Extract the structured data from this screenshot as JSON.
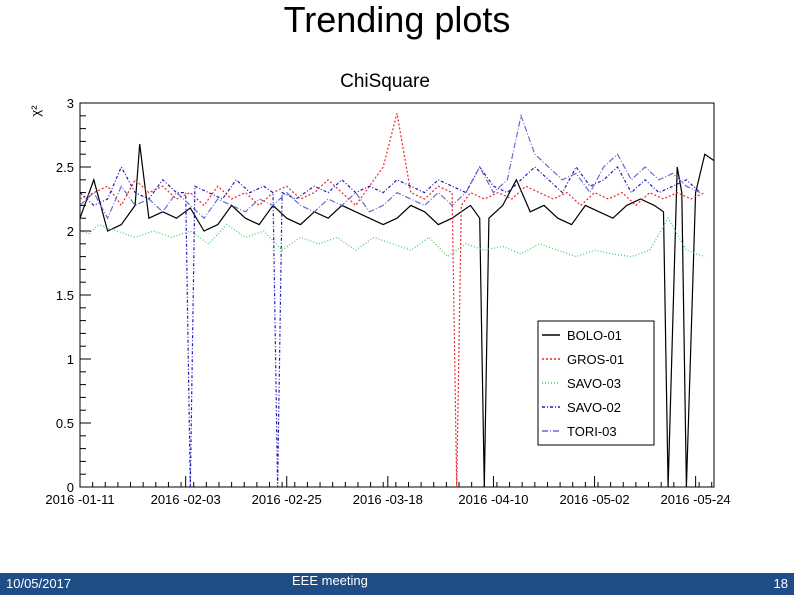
{
  "slide": {
    "title": "Trending plots"
  },
  "footer": {
    "date": "10/05/2017",
    "center": "EEE meeting",
    "page": "18"
  },
  "colors": {
    "footer_bg": "#1f4d86",
    "BOLO-01": "#000000",
    "GROS-01": "#e8272b",
    "SAVO-03": "#3ccc57",
    "SAVO-02": "#1a1ab8",
    "TORI-03": "#6a6acd"
  },
  "chart_data": {
    "type": "line",
    "title": "ChiSquare",
    "ylabel": "χ²",
    "xlabel": "",
    "ylim": [
      0,
      3
    ],
    "xlim": [
      "2016-01-11",
      "2016-05-28"
    ],
    "yticks": [
      "0",
      "0.5",
      "1",
      "1.5",
      "2",
      "2.5",
      "3"
    ],
    "xticks": [
      {
        "date": "2016-01-11",
        "label": "2016 -01-11"
      },
      {
        "date": "2016-02-03",
        "label": "2016 -02-03"
      },
      {
        "date": "2016-02-25",
        "label": "2016 -02-25"
      },
      {
        "date": "2016-03-18",
        "label": "2016 -03-18"
      },
      {
        "date": "2016-04-10",
        "label": "2016 -04-10"
      },
      {
        "date": "2016-05-02",
        "label": "2016 -05-02"
      },
      {
        "date": "2016-05-24",
        "label": "2016 -05-24"
      }
    ],
    "grid": false,
    "legend_position": "bottom-right",
    "series": [
      {
        "name": "BOLO-01",
        "color": "#000000",
        "dash": "none",
        "x": [
          "2016-01-11",
          "2016-01-14",
          "2016-01-17",
          "2016-01-20",
          "2016-01-23",
          "2016-01-24",
          "2016-01-26",
          "2016-01-29",
          "2016-02-01",
          "2016-02-04",
          "2016-02-07",
          "2016-02-10",
          "2016-02-13",
          "2016-02-16",
          "2016-02-19",
          "2016-02-22",
          "2016-02-25",
          "2016-02-28",
          "2016-03-02",
          "2016-03-05",
          "2016-03-08",
          "2016-03-11",
          "2016-03-14",
          "2016-03-17",
          "2016-03-20",
          "2016-03-23",
          "2016-03-26",
          "2016-03-29",
          "2016-04-01",
          "2016-04-03",
          "2016-04-05",
          "2016-04-07",
          "2016-04-08",
          "2016-04-09",
          "2016-04-12",
          "2016-04-15",
          "2016-04-18",
          "2016-04-21",
          "2016-04-24",
          "2016-04-27",
          "2016-04-30",
          "2016-05-03",
          "2016-05-06",
          "2016-05-09",
          "2016-05-12",
          "2016-05-15",
          "2016-05-17",
          "2016-05-18",
          "2016-05-20",
          "2016-05-21",
          "2016-05-22",
          "2016-05-24",
          "2016-05-26",
          "2016-05-28"
        ],
        "y": [
          2.1,
          2.4,
          2.0,
          2.05,
          2.2,
          2.68,
          2.1,
          2.15,
          2.1,
          2.18,
          2.0,
          2.05,
          2.2,
          2.1,
          2.05,
          2.2,
          2.1,
          2.05,
          2.15,
          2.1,
          2.2,
          2.15,
          2.1,
          2.05,
          2.1,
          2.2,
          2.15,
          2.05,
          2.1,
          2.15,
          2.2,
          2.1,
          0.0,
          2.1,
          2.2,
          2.4,
          2.15,
          2.2,
          2.1,
          2.05,
          2.2,
          2.15,
          2.1,
          2.2,
          2.25,
          2.2,
          2.15,
          0.0,
          2.5,
          2.3,
          0.0,
          2.3,
          2.6,
          2.55
        ]
      },
      {
        "name": "GROS-01",
        "color": "#e8272b",
        "dash": "2,2",
        "x": [
          "2016-01-11",
          "2016-01-14",
          "2016-01-17",
          "2016-01-20",
          "2016-01-23",
          "2016-01-26",
          "2016-01-29",
          "2016-02-01",
          "2016-02-04",
          "2016-02-07",
          "2016-02-10",
          "2016-02-13",
          "2016-02-16",
          "2016-02-19",
          "2016-02-22",
          "2016-02-25",
          "2016-02-28",
          "2016-03-02",
          "2016-03-05",
          "2016-03-08",
          "2016-03-11",
          "2016-03-14",
          "2016-03-17",
          "2016-03-20",
          "2016-03-23",
          "2016-03-26",
          "2016-03-29",
          "2016-04-01",
          "2016-04-02",
          "2016-04-03",
          "2016-04-05",
          "2016-04-08",
          "2016-04-11",
          "2016-04-14",
          "2016-04-17",
          "2016-04-20",
          "2016-04-23",
          "2016-04-26",
          "2016-04-29",
          "2016-05-02",
          "2016-05-05",
          "2016-05-08",
          "2016-05-11",
          "2016-05-14",
          "2016-05-17",
          "2016-05-20",
          "2016-05-23",
          "2016-05-26"
        ],
        "y": [
          2.25,
          2.3,
          2.35,
          2.2,
          2.4,
          2.3,
          2.35,
          2.25,
          2.3,
          2.2,
          2.35,
          2.25,
          2.3,
          2.2,
          2.3,
          2.35,
          2.25,
          2.3,
          2.4,
          2.3,
          2.2,
          2.35,
          2.5,
          2.92,
          2.3,
          2.25,
          2.35,
          2.3,
          0.0,
          2.2,
          2.3,
          2.25,
          2.3,
          2.25,
          2.35,
          2.3,
          2.25,
          2.3,
          2.2,
          2.3,
          2.25,
          2.3,
          2.2,
          2.3,
          2.25,
          2.3,
          2.25,
          2.3
        ]
      },
      {
        "name": "SAVO-03",
        "color": "#3ccc57",
        "dash": "1,2",
        "x": [
          "2016-01-11",
          "2016-01-13",
          "2016-01-15",
          "2016-01-19",
          "2016-01-23",
          "2016-01-27",
          "2016-01-31",
          "2016-02-04",
          "2016-02-08",
          "2016-02-12",
          "2016-02-16",
          "2016-02-20",
          "2016-02-24",
          "2016-02-28",
          "2016-03-03",
          "2016-03-07",
          "2016-03-11",
          "2016-03-15",
          "2016-03-19",
          "2016-03-23",
          "2016-03-27",
          "2016-03-31",
          "2016-04-04",
          "2016-04-08",
          "2016-04-12",
          "2016-04-16",
          "2016-04-20",
          "2016-04-24",
          "2016-04-28",
          "2016-05-02",
          "2016-05-06",
          "2016-05-10",
          "2016-05-14",
          "2016-05-18",
          "2016-05-22",
          "2016-05-26"
        ],
        "y": [
          2.0,
          1.98,
          2.05,
          2.0,
          1.95,
          2.0,
          1.95,
          2.0,
          1.9,
          2.05,
          1.95,
          2.0,
          1.85,
          1.95,
          1.9,
          1.95,
          1.85,
          1.95,
          1.9,
          1.85,
          1.95,
          1.8,
          1.9,
          1.85,
          1.88,
          1.82,
          1.9,
          1.85,
          1.8,
          1.85,
          1.82,
          1.8,
          1.85,
          2.1,
          1.85,
          1.8
        ]
      },
      {
        "name": "SAVO-02",
        "color": "#1a1ab8",
        "dash": "3,2,1,2",
        "x": [
          "2016-01-11",
          "2016-01-14",
          "2016-01-17",
          "2016-01-20",
          "2016-01-23",
          "2016-01-26",
          "2016-01-29",
          "2016-02-01",
          "2016-02-03",
          "2016-02-04",
          "2016-02-05",
          "2016-02-08",
          "2016-02-11",
          "2016-02-14",
          "2016-02-17",
          "2016-02-20",
          "2016-02-22",
          "2016-02-23",
          "2016-02-24",
          "2016-02-27",
          "2016-03-02",
          "2016-03-05",
          "2016-03-08",
          "2016-03-11",
          "2016-03-14",
          "2016-03-17",
          "2016-03-20",
          "2016-03-23",
          "2016-03-26",
          "2016-03-29",
          "2016-04-01",
          "2016-04-04",
          "2016-04-07",
          "2016-04-10",
          "2016-04-13",
          "2016-04-16",
          "2016-04-19",
          "2016-04-22",
          "2016-04-25",
          "2016-04-28",
          "2016-05-01",
          "2016-05-04",
          "2016-05-07",
          "2016-05-10",
          "2016-05-13",
          "2016-05-16",
          "2016-05-19",
          "2016-05-22",
          "2016-05-25"
        ],
        "y": [
          2.3,
          2.2,
          2.25,
          2.5,
          2.3,
          2.25,
          2.4,
          2.3,
          2.3,
          0.0,
          2.35,
          2.3,
          2.25,
          2.4,
          2.3,
          2.35,
          2.3,
          0.0,
          2.3,
          2.25,
          2.35,
          2.3,
          2.4,
          2.3,
          2.35,
          2.3,
          2.4,
          2.35,
          2.3,
          2.4,
          2.35,
          2.3,
          2.5,
          2.35,
          2.3,
          2.4,
          2.5,
          2.4,
          2.3,
          2.5,
          2.35,
          2.4,
          2.5,
          2.3,
          2.4,
          2.3,
          2.35,
          2.4,
          2.3
        ]
      },
      {
        "name": "TORI-03",
        "color": "#6a6acd",
        "dash": "6,2,1,2",
        "x": [
          "2016-01-11",
          "2016-01-14",
          "2016-01-17",
          "2016-01-20",
          "2016-01-23",
          "2016-01-26",
          "2016-01-29",
          "2016-02-01",
          "2016-02-04",
          "2016-02-07",
          "2016-02-10",
          "2016-02-13",
          "2016-02-16",
          "2016-02-19",
          "2016-02-22",
          "2016-02-25",
          "2016-02-28",
          "2016-03-02",
          "2016-03-05",
          "2016-03-08",
          "2016-03-11",
          "2016-03-14",
          "2016-03-17",
          "2016-03-20",
          "2016-03-23",
          "2016-03-26",
          "2016-03-29",
          "2016-04-01",
          "2016-04-04",
          "2016-04-07",
          "2016-04-10",
          "2016-04-13",
          "2016-04-16",
          "2016-04-19",
          "2016-04-22",
          "2016-04-25",
          "2016-04-28",
          "2016-05-01",
          "2016-05-04",
          "2016-05-07",
          "2016-05-10",
          "2016-05-13",
          "2016-05-16",
          "2016-05-19",
          "2016-05-22",
          "2016-05-25"
        ],
        "y": [
          2.2,
          2.3,
          2.1,
          2.35,
          2.2,
          2.25,
          2.15,
          2.3,
          2.2,
          2.1,
          2.25,
          2.2,
          2.15,
          2.25,
          2.2,
          2.3,
          2.2,
          2.15,
          2.25,
          2.2,
          2.3,
          2.15,
          2.2,
          2.3,
          2.25,
          2.2,
          2.3,
          2.2,
          2.3,
          2.5,
          2.3,
          2.4,
          2.9,
          2.6,
          2.5,
          2.4,
          2.45,
          2.3,
          2.5,
          2.6,
          2.4,
          2.5,
          2.4,
          2.45,
          2.35,
          2.3
        ]
      }
    ]
  }
}
